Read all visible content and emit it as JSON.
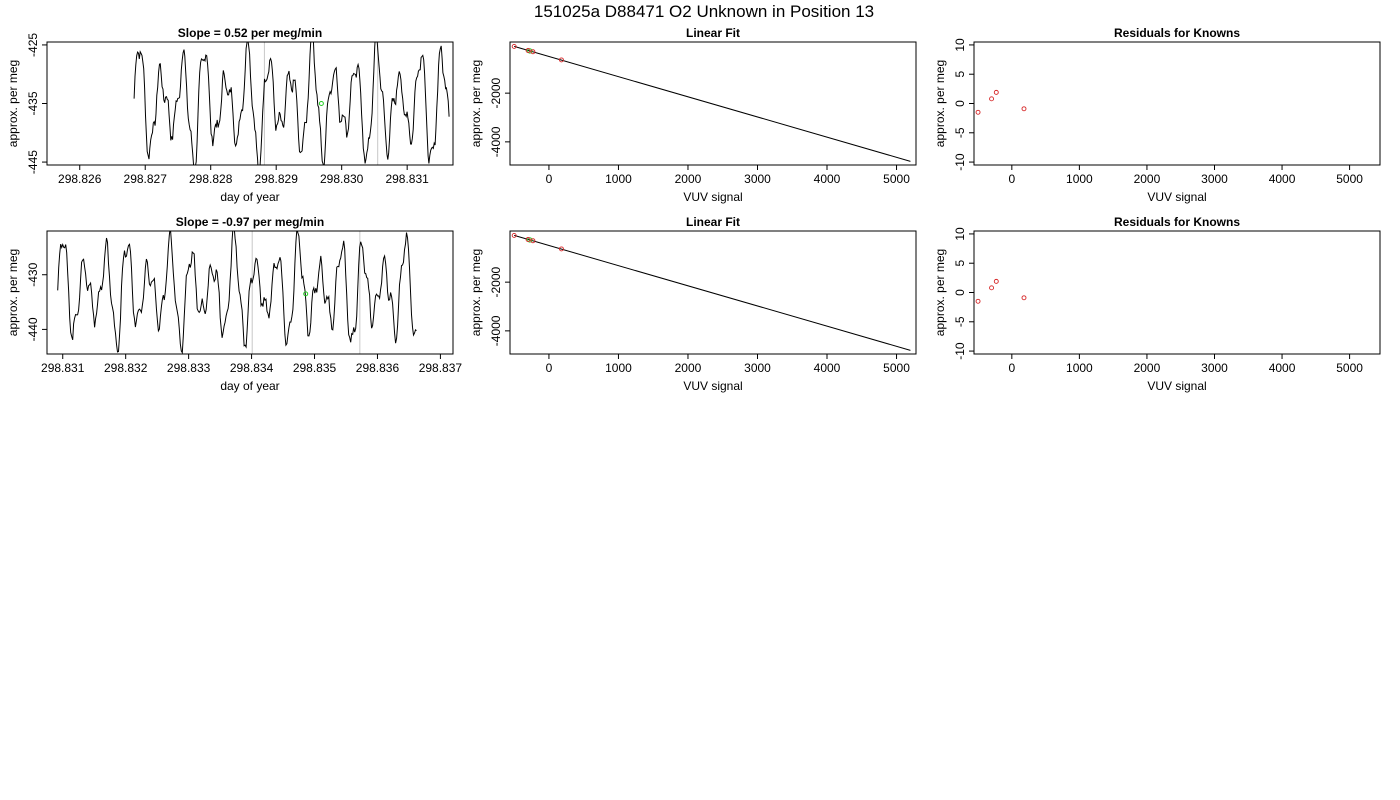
{
  "supertitle": "151025a      D88471   O2 Unknown in Position  13",
  "colors": {
    "known": "#d62728",
    "unknown": "#22cc22",
    "trace": "#000000",
    "marker_line": "#c8c8c8"
  },
  "chart_data": [
    {
      "type": "line",
      "title": "Slope =  0.52  per meg/min",
      "xlabel": "day of year",
      "ylabel": "approx. per meg",
      "xlim": [
        298.8255,
        298.8317
      ],
      "ylim": [
        -445.5,
        -424.5
      ],
      "xticks": [
        298.826,
        298.827,
        298.828,
        298.829,
        298.83,
        298.831
      ],
      "xtick_labels": [
        "298.826",
        "298.827",
        "298.828",
        "298.829",
        "298.830",
        "298.831"
      ],
      "yticks": [
        -425,
        -435,
        -445
      ],
      "ytick_labels": [
        "-425",
        "-435",
        "-445"
      ],
      "x_start": 298.82683,
      "x_end": 298.83164,
      "y_mean": -435,
      "y_amp": 9.5,
      "period": 0.00033,
      "vlines": [
        298.82882,
        298.83055
      ],
      "marker": {
        "x": 298.82969,
        "y": -435
      }
    },
    {
      "type": "scatter",
      "title": "Linear Fit",
      "xlabel": "VUV signal",
      "ylabel": "approx. per meg",
      "xlim": [
        -560,
        5280
      ],
      "ylim": [
        -4950,
        100
      ],
      "xticks": [
        0,
        1000,
        2000,
        3000,
        4000,
        5000
      ],
      "xtick_labels": [
        "0",
        "1000",
        "2000",
        "3000",
        "4000",
        "5000"
      ],
      "yticks": [
        -2000,
        -4000
      ],
      "ytick_labels": [
        "-2000",
        "-4000"
      ],
      "line": {
        "x": [
          -500,
          5200
        ],
        "y": [
          -80,
          -4800
        ]
      },
      "knowns": {
        "x": [
          -500,
          -300,
          -230,
          180
        ],
        "y": [
          -82,
          -249,
          -300,
          -635
        ]
      },
      "unknowns": {
        "x": [
          -275
        ],
        "y": [
          -265
        ]
      }
    },
    {
      "type": "scatter",
      "title": "Residuals for Knowns",
      "xlabel": "VUV signal",
      "ylabel": "approx. per meg",
      "xlim": [
        -560,
        5450
      ],
      "ylim": [
        -10.5,
        10.5
      ],
      "xticks": [
        0,
        1000,
        2000,
        3000,
        4000,
        5000
      ],
      "xtick_labels": [
        "0",
        "1000",
        "2000",
        "3000",
        "4000",
        "5000"
      ],
      "yticks": [
        10,
        5,
        0,
        -5,
        -10
      ],
      "ytick_labels": [
        "10",
        "5",
        "0",
        "-5",
        "-10"
      ],
      "knowns": {
        "x": [
          -500,
          -300,
          -230,
          180
        ],
        "y": [
          -1.5,
          0.8,
          1.9,
          -0.9
        ]
      }
    },
    {
      "type": "line",
      "title": "Slope =  -0.97  per meg/min",
      "xlabel": "day of year",
      "ylabel": "approx. per meg",
      "xlim": [
        298.83075,
        298.8372
      ],
      "ylim": [
        -444.5,
        -422.0
      ],
      "xticks": [
        298.831,
        298.832,
        298.833,
        298.834,
        298.835,
        298.836,
        298.837
      ],
      "xtick_labels": [
        "298.831",
        "298.832",
        "298.833",
        "298.834",
        "298.835",
        "298.836",
        "298.837"
      ],
      "yticks": [
        -430,
        -440
      ],
      "ytick_labels": [
        "-430",
        "-440"
      ],
      "x_start": 298.83092,
      "x_end": 298.83662,
      "y_mean": -433,
      "y_amp": 9.0,
      "period": 0.00034,
      "vlines": [
        298.83401,
        298.83572
      ],
      "marker": {
        "x": 298.83486,
        "y": -433.5
      }
    },
    {
      "type": "scatter",
      "title": "Linear Fit",
      "xlabel": "VUV signal",
      "ylabel": "approx. per meg",
      "xlim": [
        -560,
        5280
      ],
      "ylim": [
        -4950,
        100
      ],
      "xticks": [
        0,
        1000,
        2000,
        3000,
        4000,
        5000
      ],
      "xtick_labels": [
        "0",
        "1000",
        "2000",
        "3000",
        "4000",
        "5000"
      ],
      "yticks": [
        -2000,
        -4000
      ],
      "ytick_labels": [
        "-2000",
        "-4000"
      ],
      "line": {
        "x": [
          -500,
          5200
        ],
        "y": [
          -80,
          -4800
        ]
      },
      "knowns": {
        "x": [
          -500,
          -300,
          -230,
          180
        ],
        "y": [
          -82,
          -249,
          -300,
          -635
        ]
      },
      "unknowns": {
        "x": [
          -275
        ],
        "y": [
          -265
        ]
      }
    },
    {
      "type": "scatter",
      "title": "Residuals for Knowns",
      "xlabel": "VUV signal",
      "ylabel": "approx. per meg",
      "xlim": [
        -560,
        5450
      ],
      "ylim": [
        -10.5,
        10.5
      ],
      "xticks": [
        0,
        1000,
        2000,
        3000,
        4000,
        5000
      ],
      "xtick_labels": [
        "0",
        "1000",
        "2000",
        "3000",
        "4000",
        "5000"
      ],
      "yticks": [
        10,
        5,
        0,
        -5,
        -10
      ],
      "ytick_labels": [
        "10",
        "5",
        "0",
        "-5",
        "-10"
      ],
      "knowns": {
        "x": [
          -500,
          -300,
          -230,
          180
        ],
        "y": [
          -1.5,
          0.8,
          1.9,
          -0.9
        ]
      }
    }
  ]
}
